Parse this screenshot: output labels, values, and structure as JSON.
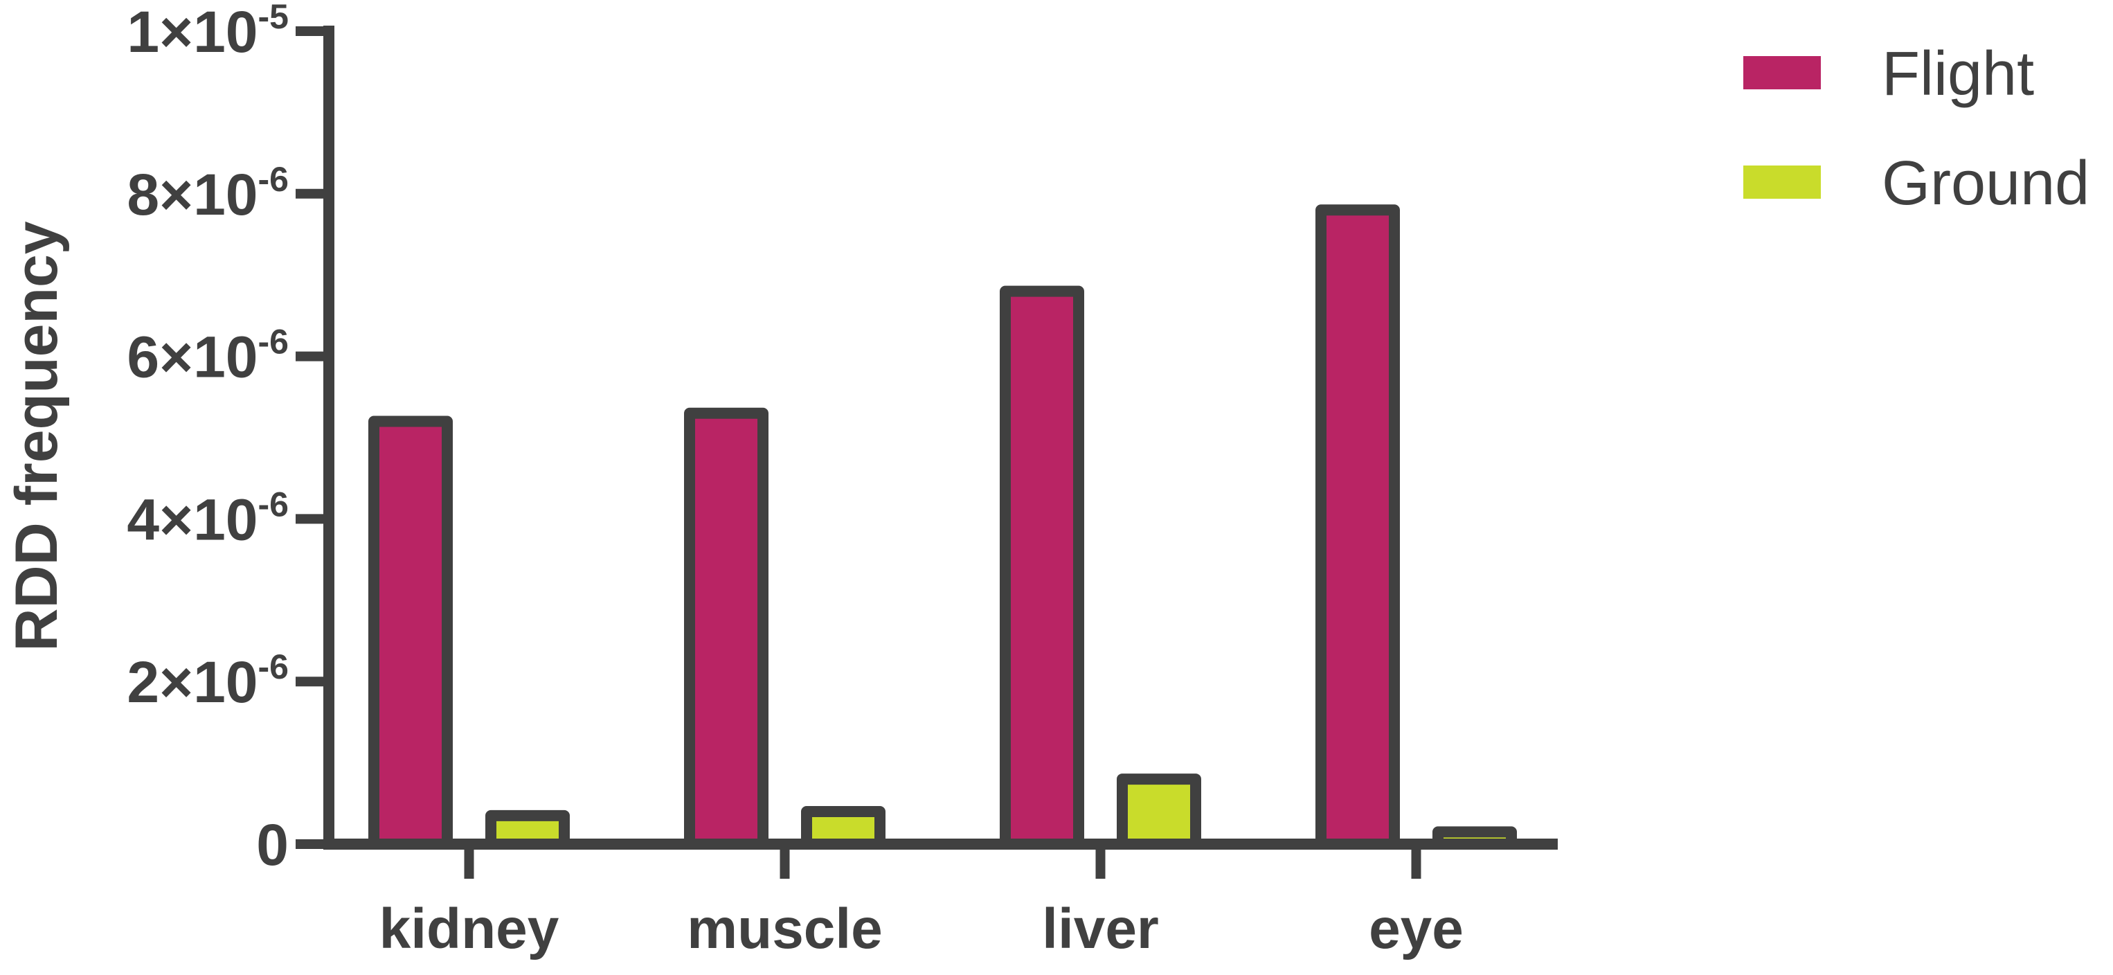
{
  "chart_data": {
    "type": "bar",
    "title": "",
    "xlabel": "",
    "ylabel": "RDD frequency",
    "categories": [
      "kidney",
      "muscle",
      "liver",
      "eye"
    ],
    "series": [
      {
        "name": "Flight",
        "color": "#b92464",
        "values": [
          5.2e-06,
          5.3e-06,
          6.8e-06,
          7.8e-06
        ]
      },
      {
        "name": "Ground",
        "color": "#c9dc2b",
        "values": [
          3.5e-07,
          4e-07,
          8e-07,
          1.5e-07
        ]
      }
    ],
    "ylim": [
      0,
      1e-05
    ],
    "yticks": [
      {
        "value": 0,
        "mantissa": "0",
        "exponent": ""
      },
      {
        "value": 2e-06,
        "mantissa": "2×10",
        "exponent": "-6"
      },
      {
        "value": 4e-06,
        "mantissa": "4×10",
        "exponent": "-6"
      },
      {
        "value": 6e-06,
        "mantissa": "6×10",
        "exponent": "-6"
      },
      {
        "value": 8e-06,
        "mantissa": "8×10",
        "exponent": "-6"
      },
      {
        "value": 1e-05,
        "mantissa": "1×10",
        "exponent": "-5"
      }
    ],
    "axis_color": "#404040",
    "grid": false,
    "legend": "top-right"
  }
}
